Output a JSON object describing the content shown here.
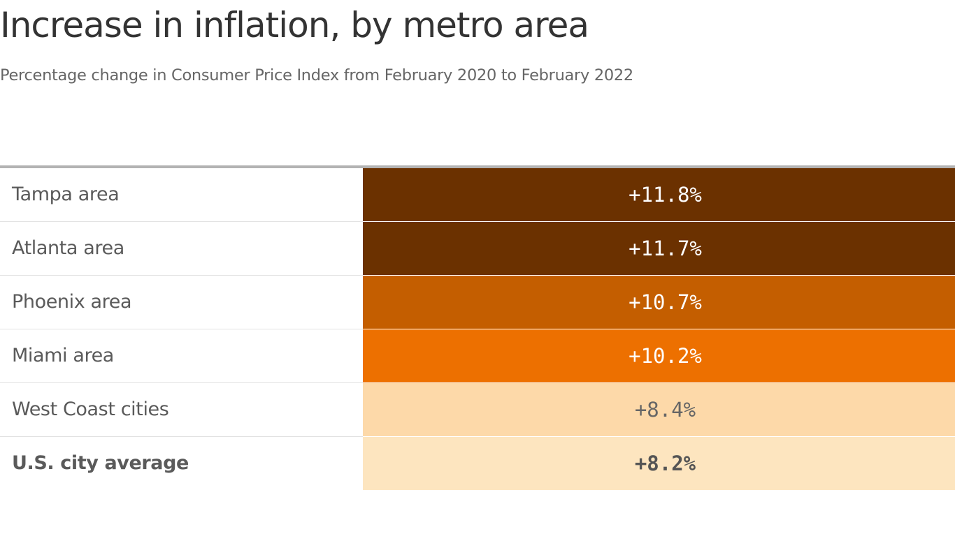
{
  "chart_data": {
    "type": "table",
    "title": "Increase in inflation, by metro area",
    "subtitle": "Percentage change in Consumer Price Index from February 2020 to February 2022",
    "rows": [
      {
        "label": "Tampa area",
        "value": 11.8,
        "display": "+11.8%",
        "fill": "#6b3100",
        "text_color": "#ffffff",
        "bold": false
      },
      {
        "label": "Atlanta area",
        "value": 11.7,
        "display": "+11.7%",
        "fill": "#6b3100",
        "text_color": "#ffffff",
        "bold": false
      },
      {
        "label": "Phoenix area",
        "value": 10.7,
        "display": "+10.7%",
        "fill": "#c45e00",
        "text_color": "#ffffff",
        "bold": false
      },
      {
        "label": "Miami area",
        "value": 10.2,
        "display": "+10.2%",
        "fill": "#ed7000",
        "text_color": "#ffffff",
        "bold": false
      },
      {
        "label": "West Coast cities",
        "value": 8.4,
        "display": "+8.4%",
        "fill": "#fdd9a9",
        "text_color": "#666666",
        "bold": false
      },
      {
        "label": "U.S. city average",
        "value": 8.2,
        "display": "+8.2%",
        "fill": "#fde5bf",
        "text_color": "#555555",
        "bold": true
      }
    ]
  }
}
